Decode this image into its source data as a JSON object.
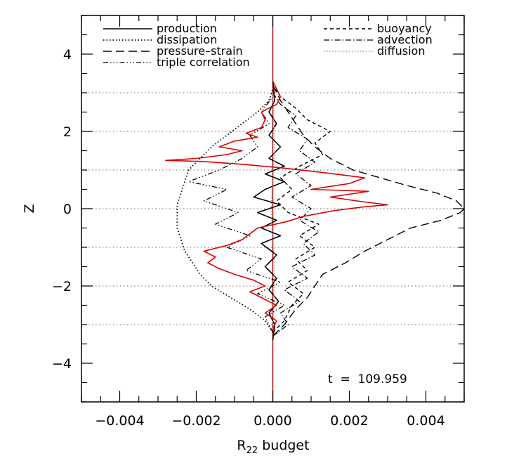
{
  "chart_data": {
    "type": "line",
    "title": "",
    "xlabel": "R",
    "xlabel_sub": "22",
    "xlabel_suffix": " budget",
    "ylabel": "Z",
    "xlim": [
      -0.005,
      0.005
    ],
    "ylim": [
      -5,
      5
    ],
    "x_ticks": [
      -0.004,
      -0.002,
      0.0,
      0.002,
      0.004
    ],
    "x_tick_labels": [
      "−0.004",
      "−0.002",
      "0.000",
      "0.002",
      "0.004"
    ],
    "y_ticks": [
      -4,
      -2,
      0,
      2,
      4
    ],
    "y_tick_labels": [
      "−4",
      "−2",
      "0",
      "2",
      "4"
    ],
    "reference_lines_z": [
      3,
      2,
      1,
      0,
      -1,
      -2,
      -3
    ],
    "annotation": "t  =  109.959",
    "legend": [
      {
        "name": "production",
        "style": "solid",
        "color": "#000000"
      },
      {
        "name": "dissipation",
        "style": "dotted",
        "color": "#000000"
      },
      {
        "name": "pressure–strain",
        "style": "longdash",
        "color": "#000000"
      },
      {
        "name": "triple correlation",
        "style": "dashdotdot",
        "color": "#000000"
      },
      {
        "name": "buoyancy",
        "style": "dashed",
        "color": "#000000"
      },
      {
        "name": "advection",
        "style": "dashdot",
        "color": "#000000"
      },
      {
        "name": "diffusion",
        "style": "gray-dotted",
        "color": "#999999"
      }
    ],
    "series": [
      {
        "style": "solid",
        "color": "#000000",
        "points": [
          [
            0,
            -3.4
          ],
          [
            5e-05,
            -3
          ],
          [
            -0.0001,
            -2.7
          ],
          [
            0.00015,
            -2.4
          ],
          [
            -0.0001,
            -2.1
          ],
          [
            0.0001,
            -1.8
          ],
          [
            -0.0002,
            -1.5
          ],
          [
            0.0001,
            -1.2
          ],
          [
            -0.0003,
            -0.9
          ],
          [
            0.0002,
            -0.7
          ],
          [
            -0.0003,
            -0.5
          ],
          [
            0.0001,
            -0.3
          ],
          [
            -0.0004,
            -0.1
          ],
          [
            0.0002,
            0.1
          ],
          [
            -0.0005,
            0.3
          ],
          [
            -0.0002,
            0.5
          ],
          [
            0.0003,
            0.7
          ],
          [
            -0.0002,
            0.9
          ],
          [
            0.0003,
            1.1
          ],
          [
            -0.0001,
            1.3
          ],
          [
            0.0002,
            1.6
          ],
          [
            -0.0001,
            1.9
          ],
          [
            0.0001,
            2.2
          ],
          [
            -0.0001,
            2.5
          ],
          [
            5e-05,
            2.8
          ],
          [
            0,
            3.3
          ]
        ]
      },
      {
        "style": "dotted",
        "color": "#000000",
        "points": [
          [
            0,
            -3.2
          ],
          [
            -0.0002,
            -2.9
          ],
          [
            -0.0006,
            -2.6
          ],
          [
            -0.0011,
            -2.3
          ],
          [
            -0.0016,
            -2.0
          ],
          [
            -0.0019,
            -1.7
          ],
          [
            -0.0021,
            -1.4
          ],
          [
            -0.0023,
            -1.1
          ],
          [
            -0.0024,
            -0.8
          ],
          [
            -0.0025,
            -0.5
          ],
          [
            -0.0025,
            -0.2
          ],
          [
            -0.0025,
            0.1
          ],
          [
            -0.0024,
            0.4
          ],
          [
            -0.0023,
            0.7
          ],
          [
            -0.0022,
            1.0
          ],
          [
            -0.0019,
            1.3
          ],
          [
            -0.0016,
            1.6
          ],
          [
            -0.0012,
            1.9
          ],
          [
            -0.0008,
            2.2
          ],
          [
            -0.0004,
            2.5
          ],
          [
            -0.0001,
            2.8
          ],
          [
            0,
            3.1
          ]
        ]
      },
      {
        "style": "longdash",
        "color": "#000000",
        "points": [
          [
            0,
            -3.3
          ],
          [
            0.0003,
            -3
          ],
          [
            0.0006,
            -2.6
          ],
          [
            0.0009,
            -2.3
          ],
          [
            0.0011,
            -2
          ],
          [
            0.0013,
            -1.7
          ],
          [
            0.0019,
            -1.4
          ],
          [
            0.0024,
            -1.1
          ],
          [
            0.003,
            -0.8
          ],
          [
            0.0036,
            -0.5
          ],
          [
            0.0044,
            -0.3
          ],
          [
            0.0049,
            -0.1
          ],
          [
            0.005,
            0
          ],
          [
            0.0048,
            0.2
          ],
          [
            0.0043,
            0.4
          ],
          [
            0.0035,
            0.6
          ],
          [
            0.0028,
            0.8
          ],
          [
            0.0021,
            1.0
          ],
          [
            0.0015,
            1.3
          ],
          [
            0.0011,
            1.6
          ],
          [
            0.0008,
            1.9
          ],
          [
            0.0006,
            2.2
          ],
          [
            0.0004,
            2.5
          ],
          [
            0.0002,
            2.8
          ],
          [
            0,
            3.2
          ]
        ]
      },
      {
        "style": "dashdotdot",
        "color": "#000000",
        "points": [
          [
            0,
            -3.2
          ],
          [
            -0.0002,
            -2.8
          ],
          [
            0.0003,
            -2.5
          ],
          [
            -0.0004,
            -2.2
          ],
          [
            0.0002,
            -1.9
          ],
          [
            -0.0007,
            -1.6
          ],
          [
            -0.0003,
            -1.3
          ],
          [
            -0.0012,
            -1.0
          ],
          [
            -0.0006,
            -0.7
          ],
          [
            -0.0015,
            -0.4
          ],
          [
            -0.0009,
            -0.1
          ],
          [
            -0.0018,
            0.2
          ],
          [
            -0.0012,
            0.5
          ],
          [
            -0.0022,
            0.7
          ],
          [
            -0.0014,
            1.0
          ],
          [
            -0.0008,
            1.3
          ],
          [
            -0.0004,
            1.6
          ],
          [
            -0.0006,
            1.9
          ],
          [
            -0.0001,
            2.2
          ],
          [
            -0.0003,
            2.5
          ],
          [
            0,
            2.9
          ]
        ]
      },
      {
        "style": "dashed",
        "color": "#000000",
        "points": [
          [
            0,
            -3.2
          ],
          [
            0.0003,
            -2.9
          ],
          [
            0.0005,
            -2.5
          ],
          [
            0.0008,
            -2.2
          ],
          [
            0.0004,
            -1.9
          ],
          [
            0.0009,
            -1.6
          ],
          [
            0.0006,
            -1.3
          ],
          [
            0.0011,
            -1.0
          ],
          [
            0.0007,
            -0.7
          ],
          [
            0.0012,
            -0.4
          ],
          [
            0.0004,
            -0.1
          ],
          [
            0.0001,
            0.2
          ],
          [
            0.0005,
            0.5
          ],
          [
            0.0002,
            0.8
          ],
          [
            0.0007,
            1.1
          ],
          [
            0.0013,
            1.4
          ],
          [
            0.0011,
            1.7
          ],
          [
            0.0015,
            2.0
          ],
          [
            0.0009,
            2.3
          ],
          [
            0.0006,
            2.6
          ],
          [
            0.0002,
            2.9
          ],
          [
            0,
            3.2
          ]
        ]
      },
      {
        "style": "dashdot",
        "color": "#000000",
        "points": [
          [
            0,
            -3.3
          ],
          [
            0.0004,
            -3.0
          ],
          [
            0.0002,
            -2.7
          ],
          [
            0.0007,
            -2.4
          ],
          [
            0.0003,
            -2.1
          ],
          [
            0.0009,
            -1.8
          ],
          [
            0.0005,
            -1.5
          ],
          [
            0.0011,
            -1.2
          ],
          [
            0.0008,
            -0.9
          ],
          [
            0.0012,
            -0.6
          ],
          [
            0.0007,
            -0.3
          ],
          [
            0.001,
            0.0
          ],
          [
            0.0005,
            0.3
          ],
          [
            0.001,
            0.6
          ],
          [
            0.0006,
            0.9
          ],
          [
            0.0011,
            1.2
          ],
          [
            0.0007,
            1.5
          ],
          [
            0.0009,
            1.8
          ],
          [
            0.0004,
            2.1
          ],
          [
            0.0006,
            2.4
          ],
          [
            0.0002,
            2.7
          ],
          [
            0,
            3.0
          ]
        ]
      },
      {
        "style": "gray-dotted",
        "color": "#999999",
        "points": [
          [
            0,
            -3.0
          ],
          [
            5e-05,
            -1.5
          ],
          [
            -5e-05,
            0
          ],
          [
            5e-05,
            1.5
          ],
          [
            0,
            3.0
          ]
        ]
      },
      {
        "style": "red",
        "color": "#dd0000",
        "points": [
          [
            0,
            -3.1
          ],
          [
            0.0001,
            -2.9
          ],
          [
            -0.0002,
            -2.7
          ],
          [
            0.0001,
            -2.5
          ],
          [
            -0.0003,
            -2.3
          ],
          [
            -0.0006,
            -2.15
          ],
          [
            -0.0002,
            -2.0
          ],
          [
            -0.0005,
            -1.85
          ],
          [
            -0.001,
            -1.7
          ],
          [
            -0.0014,
            -1.55
          ],
          [
            -0.0017,
            -1.4
          ],
          [
            -0.0015,
            -1.25
          ],
          [
            -0.0018,
            -1.1
          ],
          [
            -0.0012,
            -0.95
          ],
          [
            -0.0008,
            -0.8
          ],
          [
            -0.0006,
            -0.65
          ],
          [
            -0.0004,
            -0.5
          ],
          [
            0.0003,
            -0.35
          ],
          [
            0.0008,
            -0.2
          ],
          [
            0.0016,
            -0.05
          ],
          [
            0.0024,
            0.05
          ],
          [
            0.003,
            0.1
          ],
          [
            0.0022,
            0.2
          ],
          [
            0.0015,
            0.3
          ],
          [
            0.0025,
            0.45
          ],
          [
            0.001,
            0.5
          ],
          [
            0.002,
            0.65
          ],
          [
            0.0024,
            0.8
          ],
          [
            0.0012,
            0.95
          ],
          [
            0.0003,
            1.05
          ],
          [
            -0.0008,
            1.15
          ],
          [
            -0.0018,
            1.22
          ],
          [
            -0.0028,
            1.25
          ],
          [
            -0.002,
            1.3
          ],
          [
            -0.0012,
            1.4
          ],
          [
            -0.0008,
            1.5
          ],
          [
            -0.0014,
            1.6
          ],
          [
            -0.001,
            1.75
          ],
          [
            -0.0004,
            1.85
          ],
          [
            -0.0007,
            1.95
          ],
          [
            -0.0003,
            2.1
          ],
          [
            -0.0002,
            2.3
          ],
          [
            -0.0003,
            2.5
          ],
          [
            0.0001,
            2.7
          ],
          [
            0.0002,
            2.9
          ],
          [
            0.0001,
            3.1
          ],
          [
            0,
            3.3
          ]
        ]
      }
    ]
  }
}
